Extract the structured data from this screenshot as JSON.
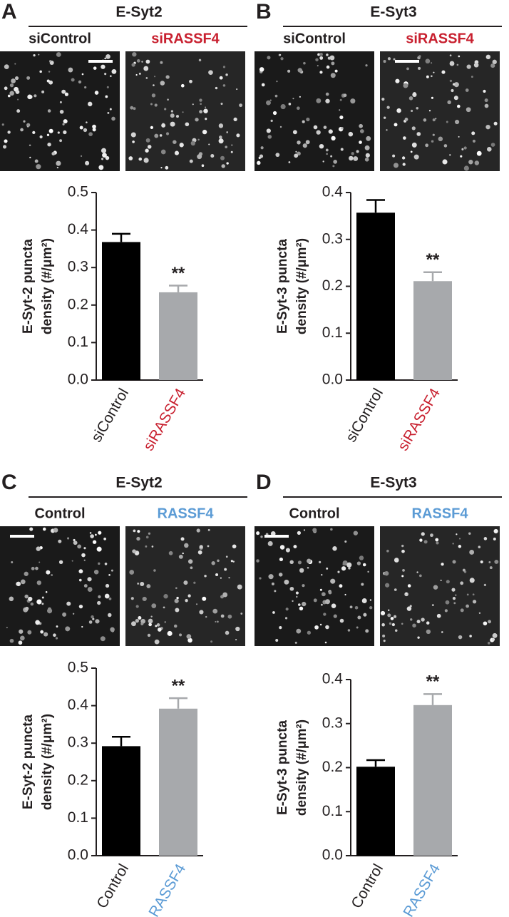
{
  "chart_data": [
    {
      "type": "bar",
      "panel": "A",
      "title": "E-Syt2",
      "image_labels": [
        "siControl",
        "siRASSF4"
      ],
      "image_label_colors": [
        "#231f20",
        "#c8202f"
      ],
      "categories": [
        "siControl",
        "siRASSF4"
      ],
      "category_colors": [
        "#231f20",
        "#c8202f"
      ],
      "values": [
        0.368,
        0.234
      ],
      "errors": [
        0.022,
        0.018
      ],
      "colors": [
        "#000000",
        "#a7a9ac"
      ],
      "annotation": "**",
      "ylabel": [
        "E-Syt-2 puncta",
        "density (#/μm²)"
      ],
      "ylim": [
        0,
        0.5
      ],
      "yticks": [
        {
          "value": 0,
          "label": "0.0"
        },
        0.1,
        0.2,
        0.3,
        0.4,
        0.5
      ]
    },
    {
      "type": "bar",
      "panel": "B",
      "title": "E-Syt3",
      "image_labels": [
        "siControl",
        "siRASSF4"
      ],
      "image_label_colors": [
        "#231f20",
        "#c8202f"
      ],
      "categories": [
        "siControl",
        "siRASSF4"
      ],
      "category_colors": [
        "#231f20",
        "#c8202f"
      ],
      "values": [
        0.357,
        0.211
      ],
      "errors": [
        0.027,
        0.019
      ],
      "colors": [
        "#000000",
        "#a7a9ac"
      ],
      "annotation": "**",
      "ylabel": [
        "E-Syt-3 puncta",
        "density (#/μm²)"
      ],
      "ylim": [
        0,
        0.4
      ],
      "yticks": [
        {
          "value": 0,
          "label": "0.0"
        },
        0.1,
        0.2,
        0.3,
        0.4
      ]
    },
    {
      "type": "bar",
      "panel": "C",
      "title": "E-Syt2",
      "image_labels": [
        "Control",
        "RASSF4"
      ],
      "image_label_colors": [
        "#231f20",
        "#5b9bd5"
      ],
      "categories": [
        "Control",
        "RASSF4"
      ],
      "category_colors": [
        "#231f20",
        "#5b9bd5"
      ],
      "values": [
        0.292,
        0.392
      ],
      "errors": [
        0.025,
        0.028
      ],
      "colors": [
        "#000000",
        "#a7a9ac"
      ],
      "annotation": "**",
      "ylabel": [
        "E-Syt-2 puncta",
        "density (#/μm²)"
      ],
      "ylim": [
        0,
        0.5
      ],
      "yticks": [
        {
          "value": 0,
          "label": "0.0"
        },
        0.1,
        0.2,
        0.3,
        0.4,
        0.5
      ]
    },
    {
      "type": "bar",
      "panel": "D",
      "title": "E-Syt3",
      "image_labels": [
        "Control",
        "RASSF4"
      ],
      "image_label_colors": [
        "#231f20",
        "#5b9bd5"
      ],
      "categories": [
        "Control",
        "RASSF4"
      ],
      "category_colors": [
        "#231f20",
        "#5b9bd5"
      ],
      "values": [
        0.202,
        0.342
      ],
      "errors": [
        0.015,
        0.025
      ],
      "colors": [
        "#000000",
        "#a7a9ac"
      ],
      "annotation": "**",
      "ylabel": [
        "E-Syt-3 puncta",
        "density (#/μm²)"
      ],
      "ylim": [
        0,
        0.4
      ],
      "yticks": [
        {
          "value": 0,
          "label": "0.0"
        },
        0.1,
        0.2,
        0.3,
        0.4
      ]
    }
  ]
}
